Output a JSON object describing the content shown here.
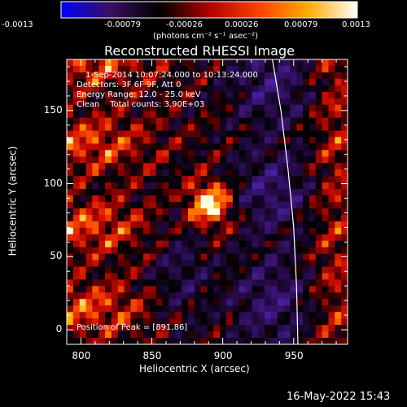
{
  "chart_data": {
    "type": "heatmap",
    "title": "Reconstructed RHESSI Image",
    "xlabel": "Heliocentric X (arcsec)",
    "ylabel": "Heliocentric Y (arcsec)",
    "xlim": [
      790,
      988
    ],
    "ylim": [
      -10,
      185
    ],
    "x_ticks": [
      800,
      850,
      900,
      950
    ],
    "y_ticks": [
      0,
      50,
      100,
      150
    ],
    "colorbar": {
      "range": [
        -0.0013,
        0.0013
      ],
      "ticks": [
        "-0.0013",
        "-0.00079",
        "-0.00026",
        "0.00026",
        "0.00079",
        "0.0013"
      ],
      "unit_text": "(photons cm⁻² s⁻¹ asec⁻²)",
      "colors": [
        "#0000ff",
        "#3a1060",
        "#000000",
        "#b00000",
        "#ff4000",
        "#ffaa00",
        "#ffffff"
      ]
    },
    "annotations": {
      "time_range": "1-Sep-2014 10:07:24.000 to 10:13:24.000",
      "detectors": "Detectors: 3F 6F 9F, Att 0",
      "energy": "Energy Range: 12.0 - 25.0 keV",
      "clean": "Clean    Total counts: 3.90E+03",
      "peak": "Position of Peak = [891,86]"
    },
    "peak_position": [
      891,
      86
    ],
    "limb_curve": [
      [
        935,
        185
      ],
      [
        941,
        150
      ],
      [
        946,
        110
      ],
      [
        950,
        70
      ],
      [
        952,
        30
      ],
      [
        953,
        -10
      ]
    ],
    "timestamp": "16-May-2022 15:43"
  }
}
